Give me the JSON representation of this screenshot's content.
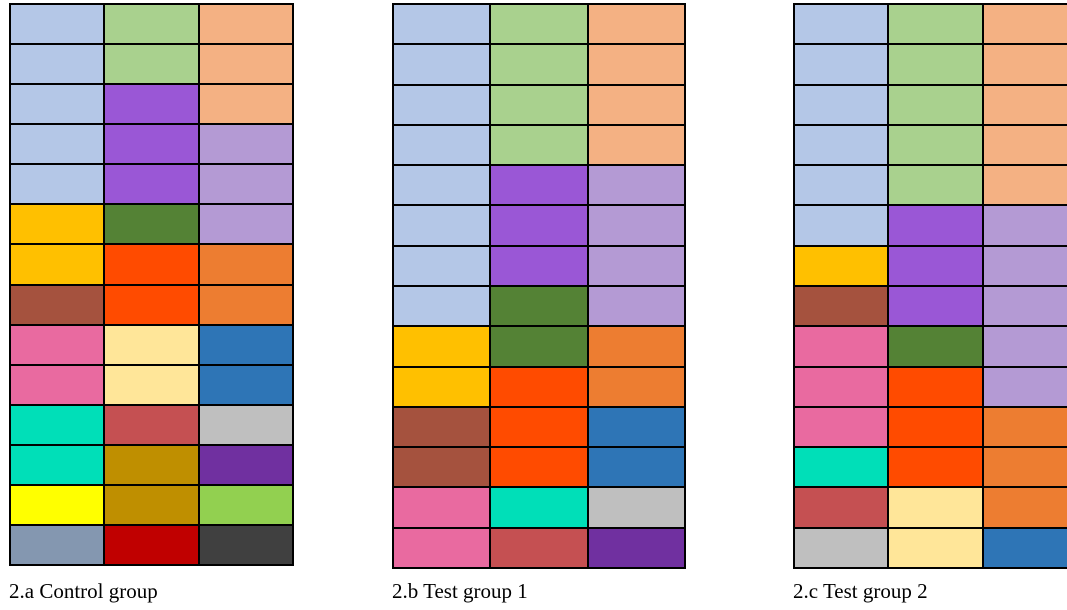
{
  "palette": {
    "light_blue": "#b4c7e7",
    "light_green": "#a9d18e",
    "peach": "#f4b183",
    "purple": "#9a57d6",
    "lavender": "#b49ad4",
    "gold": "#ffc000",
    "dark_green": "#548235",
    "red_orange": "#ff4b00",
    "orange": "#ed7d31",
    "brown": "#a5523e",
    "pink": "#e96aa0",
    "light_yellow": "#ffe699",
    "blue": "#2e75b6",
    "teal": "#00dfb8",
    "salmon_red": "#c55052",
    "gray": "#bfbfbf",
    "mustard": "#bf8f00",
    "violet": "#7030a0",
    "yellow": "#ffff00",
    "lime": "#92d050",
    "slate": "#8497b0",
    "dark_red": "#c00000",
    "charcoal": "#404040"
  },
  "panels": [
    {
      "caption": "2.a Control group",
      "rows": [
        [
          "light_blue",
          "light_green",
          "peach"
        ],
        [
          "light_blue",
          "light_green",
          "peach"
        ],
        [
          "light_blue",
          "purple",
          "peach"
        ],
        [
          "light_blue",
          "purple",
          "lavender"
        ],
        [
          "light_blue",
          "purple",
          "lavender"
        ],
        [
          "gold",
          "dark_green",
          "lavender"
        ],
        [
          "gold",
          "red_orange",
          "orange"
        ],
        [
          "brown",
          "red_orange",
          "orange"
        ],
        [
          "pink",
          "light_yellow",
          "blue"
        ],
        [
          "pink",
          "light_yellow",
          "blue"
        ],
        [
          "teal",
          "salmon_red",
          "gray"
        ],
        [
          "teal",
          "mustard",
          "violet"
        ],
        [
          "yellow",
          "mustard",
          "lime"
        ],
        [
          "slate",
          "dark_red",
          "charcoal"
        ]
      ]
    },
    {
      "caption": "2.b Test group 1",
      "rows": [
        [
          "light_blue",
          "light_green",
          "peach"
        ],
        [
          "light_blue",
          "light_green",
          "peach"
        ],
        [
          "light_blue",
          "light_green",
          "peach"
        ],
        [
          "light_blue",
          "light_green",
          "peach"
        ],
        [
          "light_blue",
          "purple",
          "lavender"
        ],
        [
          "light_blue",
          "purple",
          "lavender"
        ],
        [
          "light_blue",
          "purple",
          "lavender"
        ],
        [
          "light_blue",
          "dark_green",
          "lavender"
        ],
        [
          "gold",
          "dark_green",
          "orange"
        ],
        [
          "gold",
          "red_orange",
          "orange"
        ],
        [
          "brown",
          "red_orange",
          "blue"
        ],
        [
          "brown",
          "red_orange",
          "blue"
        ],
        [
          "pink",
          "teal",
          "gray"
        ],
        [
          "pink",
          "salmon_red",
          "violet"
        ]
      ]
    },
    {
      "caption": "2.c Test group 2",
      "rows": [
        [
          "light_blue",
          "light_green",
          "peach"
        ],
        [
          "light_blue",
          "light_green",
          "peach"
        ],
        [
          "light_blue",
          "light_green",
          "peach"
        ],
        [
          "light_blue",
          "light_green",
          "peach"
        ],
        [
          "light_blue",
          "light_green",
          "peach"
        ],
        [
          "light_blue",
          "purple",
          "lavender"
        ],
        [
          "gold",
          "purple",
          "lavender"
        ],
        [
          "brown",
          "purple",
          "lavender"
        ],
        [
          "pink",
          "dark_green",
          "lavender"
        ],
        [
          "pink",
          "red_orange",
          "lavender"
        ],
        [
          "pink",
          "red_orange",
          "orange"
        ],
        [
          "teal",
          "red_orange",
          "orange"
        ],
        [
          "salmon_red",
          "light_yellow",
          "orange"
        ],
        [
          "gray",
          "light_yellow",
          "blue"
        ]
      ]
    }
  ]
}
